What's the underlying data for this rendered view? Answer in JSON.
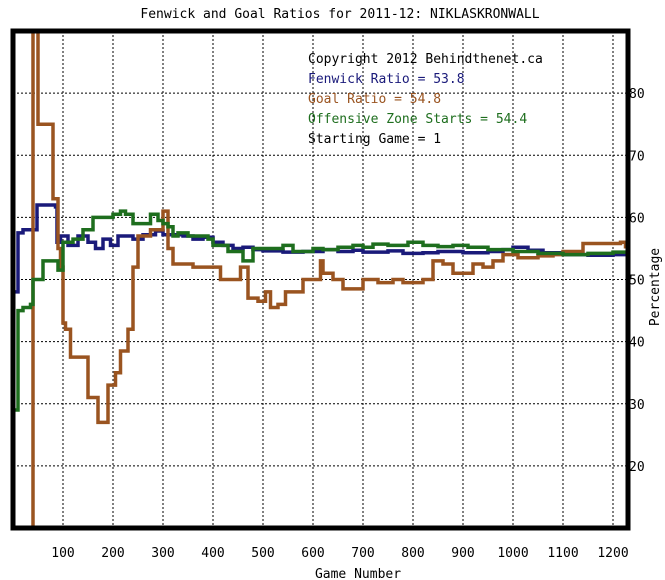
{
  "chart_data": {
    "type": "line",
    "title": "Fenwick and Goal Ratios for 2011-12: NIKLASKRONWALL",
    "xlabel": "Game Number",
    "ylabel": "Percentage",
    "xlim": [
      0,
      1230
    ],
    "ylim": [
      10,
      90
    ],
    "x_ticks": [
      100,
      200,
      300,
      400,
      500,
      600,
      700,
      800,
      900,
      1000,
      1100,
      1200
    ],
    "y_ticks": [
      20,
      30,
      40,
      50,
      60,
      70,
      80
    ],
    "grid": true,
    "legend_placement": "top-right",
    "annotation": "Copyright 2012 Behindthenet.ca",
    "starting_game_label": "Starting Game = 1",
    "series": [
      {
        "name": "Fenwick Ratio = 53.8",
        "color": "#1a1a7a",
        "points": [
          [
            2,
            48
          ],
          [
            8,
            48
          ],
          [
            10,
            57.5
          ],
          [
            20,
            58
          ],
          [
            45,
            58
          ],
          [
            48,
            62
          ],
          [
            85,
            61.7
          ],
          [
            88,
            56
          ],
          [
            95,
            57
          ],
          [
            110,
            55.5
          ],
          [
            130,
            57
          ],
          [
            150,
            56
          ],
          [
            165,
            55
          ],
          [
            180,
            56.5
          ],
          [
            195,
            55.5
          ],
          [
            210,
            57
          ],
          [
            240,
            56.5
          ],
          [
            260,
            57.2
          ],
          [
            285,
            57.8
          ],
          [
            300,
            57.2
          ],
          [
            340,
            57
          ],
          [
            360,
            56.5
          ],
          [
            380,
            56.8
          ],
          [
            400,
            56
          ],
          [
            420,
            55.5
          ],
          [
            440,
            55
          ],
          [
            460,
            55.2
          ],
          [
            480,
            54.8
          ],
          [
            500,
            54.6
          ],
          [
            540,
            54.4
          ],
          [
            580,
            54.5
          ],
          [
            620,
            54.8
          ],
          [
            650,
            54.5
          ],
          [
            680,
            54.7
          ],
          [
            700,
            54.4
          ],
          [
            750,
            54.6
          ],
          [
            780,
            54.2
          ],
          [
            820,
            54.3
          ],
          [
            850,
            54.5
          ],
          [
            900,
            54.3
          ],
          [
            950,
            54.5
          ],
          [
            980,
            54.8
          ],
          [
            1000,
            55.2
          ],
          [
            1030,
            54.7
          ],
          [
            1060,
            54.3
          ],
          [
            1100,
            54
          ],
          [
            1150,
            53.9
          ],
          [
            1200,
            54
          ],
          [
            1225,
            53.8
          ]
        ]
      },
      {
        "name": "Goal Ratio = 54.8",
        "color": "#9a5420",
        "points": [
          [
            35,
            5
          ],
          [
            38,
            5
          ],
          [
            40,
            100
          ],
          [
            48,
            100
          ],
          [
            50,
            75
          ],
          [
            60,
            75
          ],
          [
            75,
            75
          ],
          [
            80,
            63
          ],
          [
            90,
            55
          ],
          [
            95,
            52
          ],
          [
            100,
            43
          ],
          [
            105,
            42
          ],
          [
            115,
            37.5
          ],
          [
            145,
            37.5
          ],
          [
            150,
            31
          ],
          [
            165,
            31
          ],
          [
            170,
            27
          ],
          [
            185,
            27
          ],
          [
            190,
            33
          ],
          [
            205,
            35
          ],
          [
            215,
            38.5
          ],
          [
            230,
            42
          ],
          [
            240,
            52
          ],
          [
            250,
            57
          ],
          [
            265,
            57
          ],
          [
            275,
            58
          ],
          [
            290,
            58
          ],
          [
            300,
            61
          ],
          [
            310,
            55
          ],
          [
            320,
            52.5
          ],
          [
            360,
            52
          ],
          [
            400,
            52
          ],
          [
            415,
            50
          ],
          [
            440,
            50
          ],
          [
            455,
            52
          ],
          [
            470,
            47
          ],
          [
            490,
            46.5
          ],
          [
            505,
            48
          ],
          [
            515,
            45.5
          ],
          [
            530,
            46
          ],
          [
            545,
            48
          ],
          [
            570,
            48
          ],
          [
            580,
            50
          ],
          [
            600,
            50
          ],
          [
            615,
            53
          ],
          [
            620,
            51
          ],
          [
            640,
            50
          ],
          [
            660,
            48.5
          ],
          [
            680,
            48.5
          ],
          [
            700,
            50
          ],
          [
            730,
            49.5
          ],
          [
            760,
            50
          ],
          [
            780,
            49.5
          ],
          [
            800,
            49.5
          ],
          [
            820,
            50
          ],
          [
            840,
            53
          ],
          [
            860,
            52.5
          ],
          [
            880,
            51
          ],
          [
            900,
            51
          ],
          [
            920,
            52.5
          ],
          [
            940,
            52
          ],
          [
            960,
            53
          ],
          [
            980,
            54
          ],
          [
            1000,
            54
          ],
          [
            1010,
            53.5
          ],
          [
            1050,
            53.8
          ],
          [
            1080,
            54
          ],
          [
            1100,
            54.5
          ],
          [
            1120,
            54.5
          ],
          [
            1140,
            55.8
          ],
          [
            1200,
            55.8
          ],
          [
            1215,
            56
          ],
          [
            1225,
            55
          ]
        ]
      },
      {
        "name": "Offensive Zone Starts = 54.4",
        "color": "#1e6e1e",
        "points": [
          [
            2,
            29
          ],
          [
            8,
            29
          ],
          [
            10,
            45
          ],
          [
            20,
            45.5
          ],
          [
            35,
            46
          ],
          [
            40,
            50
          ],
          [
            55,
            50
          ],
          [
            60,
            53
          ],
          [
            75,
            53
          ],
          [
            90,
            51.5
          ],
          [
            100,
            56
          ],
          [
            120,
            56.5
          ],
          [
            140,
            58
          ],
          [
            160,
            60
          ],
          [
            185,
            60
          ],
          [
            200,
            60.5
          ],
          [
            215,
            61
          ],
          [
            225,
            60.5
          ],
          [
            240,
            59
          ],
          [
            260,
            59
          ],
          [
            275,
            60.5
          ],
          [
            290,
            59.5
          ],
          [
            300,
            59
          ],
          [
            310,
            58.5
          ],
          [
            320,
            57
          ],
          [
            330,
            57.5
          ],
          [
            350,
            57
          ],
          [
            370,
            57
          ],
          [
            390,
            56.5
          ],
          [
            400,
            55.5
          ],
          [
            420,
            55.5
          ],
          [
            430,
            54.5
          ],
          [
            445,
            54.5
          ],
          [
            460,
            53
          ],
          [
            480,
            55
          ],
          [
            500,
            55
          ],
          [
            520,
            55
          ],
          [
            540,
            55.5
          ],
          [
            560,
            54.5
          ],
          [
            600,
            55
          ],
          [
            620,
            54.8
          ],
          [
            650,
            55.2
          ],
          [
            680,
            55.5
          ],
          [
            700,
            55.2
          ],
          [
            720,
            55.7
          ],
          [
            750,
            55.5
          ],
          [
            790,
            56
          ],
          [
            820,
            55.5
          ],
          [
            850,
            55.3
          ],
          [
            880,
            55.5
          ],
          [
            910,
            55.2
          ],
          [
            950,
            54.8
          ],
          [
            1000,
            54.5
          ],
          [
            1050,
            54.2
          ],
          [
            1100,
            54
          ],
          [
            1150,
            54.2
          ],
          [
            1200,
            54.4
          ],
          [
            1225,
            54.4
          ]
        ]
      }
    ]
  }
}
